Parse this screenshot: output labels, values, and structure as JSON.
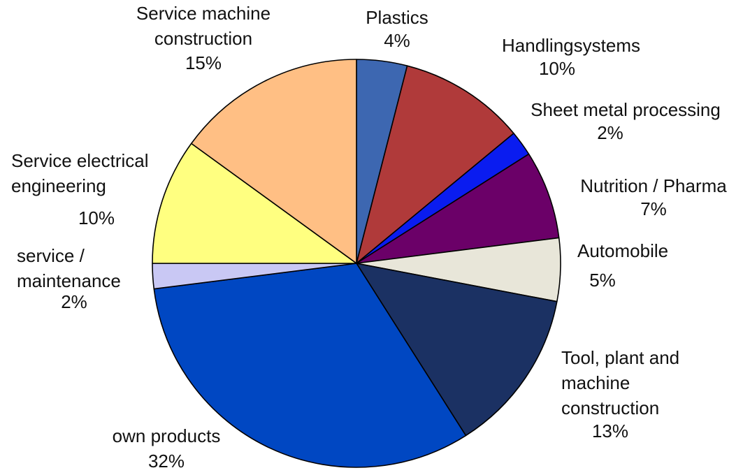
{
  "chart_data": {
    "type": "pie",
    "title": "",
    "start_angle_deg": 0,
    "direction": "clockwise",
    "slices": [
      {
        "name": "Plastics",
        "label_lines": [
          "Plastics"
        ],
        "pct_label": "4%",
        "value": 4,
        "color": "#3d67b1"
      },
      {
        "name": "Handlingsystems",
        "label_lines": [
          "Handlingsystems"
        ],
        "pct_label": "10%",
        "value": 10,
        "color": "#b03a3a"
      },
      {
        "name": "Sheet metal processing",
        "label_lines": [
          "Sheet metal processing"
        ],
        "pct_label": "2%",
        "value": 2,
        "color": "#0a1cf0"
      },
      {
        "name": "Nutrition / Pharma",
        "label_lines": [
          "Nutrition / Pharma"
        ],
        "pct_label": "7%",
        "value": 7,
        "color": "#6b0068"
      },
      {
        "name": "Automobile",
        "label_lines": [
          "Automobile"
        ],
        "pct_label": "5%",
        "value": 5,
        "color": "#e8e6d9"
      },
      {
        "name": "Tool, plant and machine construction",
        "label_lines": [
          "Tool, plant and",
          "machine",
          "construction"
        ],
        "pct_label": "13%",
        "value": 13,
        "color": "#1b3163"
      },
      {
        "name": "own products",
        "label_lines": [
          "own products"
        ],
        "pct_label": "32%",
        "value": 32,
        "color": "#0047c2"
      },
      {
        "name": "service / maintenance",
        "label_lines": [
          "service /",
          "maintenance"
        ],
        "pct_label": "2%",
        "value": 2,
        "color": "#c9c8f4"
      },
      {
        "name": "Service electrical engineering",
        "label_lines": [
          "Service electrical",
          "engineering"
        ],
        "pct_label": "10%",
        "value": 10,
        "color": "#ffff80"
      },
      {
        "name": "Service machine construction",
        "label_lines": [
          "Service machine",
          "construction"
        ],
        "pct_label": "15%",
        "value": 15,
        "color": "#ffbf84"
      }
    ]
  }
}
